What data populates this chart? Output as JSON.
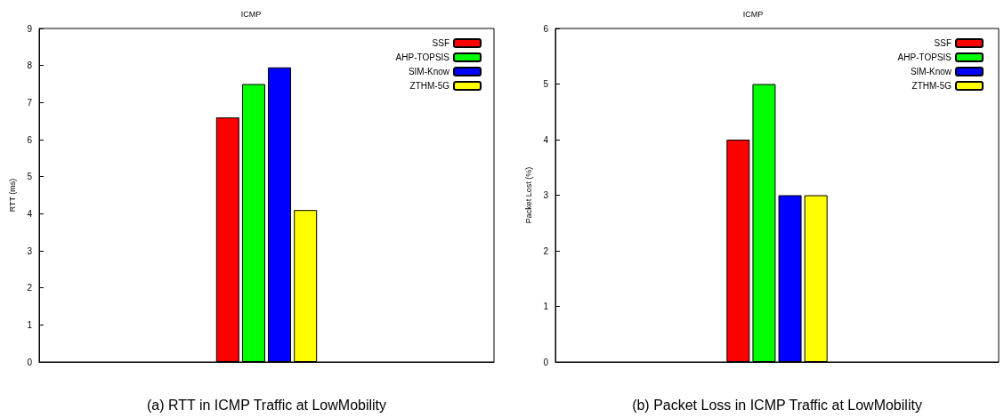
{
  "chart_data": [
    {
      "type": "bar",
      "title": "ICMP",
      "xlabel": "(a) RTT in ICMP Traffic at LowMobility",
      "ylabel": "RTT (ms)",
      "categories": [
        null
      ],
      "series": [
        {
          "name": "SSF",
          "color": "#ff0000",
          "values": [
            6.6
          ]
        },
        {
          "name": "AHP-TOPSIS",
          "color": "#00ff00",
          "values": [
            7.5
          ]
        },
        {
          "name": "SIM-Know",
          "color": "#0000ff",
          "values": [
            7.95
          ]
        },
        {
          "name": "ZTHM-5G",
          "color": "#ffff00",
          "values": [
            4.1
          ]
        }
      ],
      "ylim": [
        0,
        9
      ],
      "yticks": [
        0,
        1,
        2,
        3,
        4,
        5,
        6,
        7,
        8,
        9
      ],
      "grid": false,
      "legend": "top right"
    },
    {
      "type": "bar",
      "title": "ICMP",
      "xlabel": "(b) Packet Loss in ICMP Traffic at LowMobility",
      "ylabel": "Packet Lost (%)",
      "categories": [
        null
      ],
      "series": [
        {
          "name": "SSF",
          "color": "#ff0000",
          "values": [
            4
          ]
        },
        {
          "name": "AHP-TOPSIS",
          "color": "#00ff00",
          "values": [
            5
          ]
        },
        {
          "name": "SIM-Know",
          "color": "#0000ff",
          "values": [
            3
          ]
        },
        {
          "name": "ZTHM-5G",
          "color": "#ffff00",
          "values": [
            3
          ]
        }
      ],
      "ylim": [
        0,
        6
      ],
      "yticks": [
        0,
        1,
        2,
        3,
        4,
        5,
        6
      ],
      "grid": false,
      "legend": "top right"
    }
  ]
}
